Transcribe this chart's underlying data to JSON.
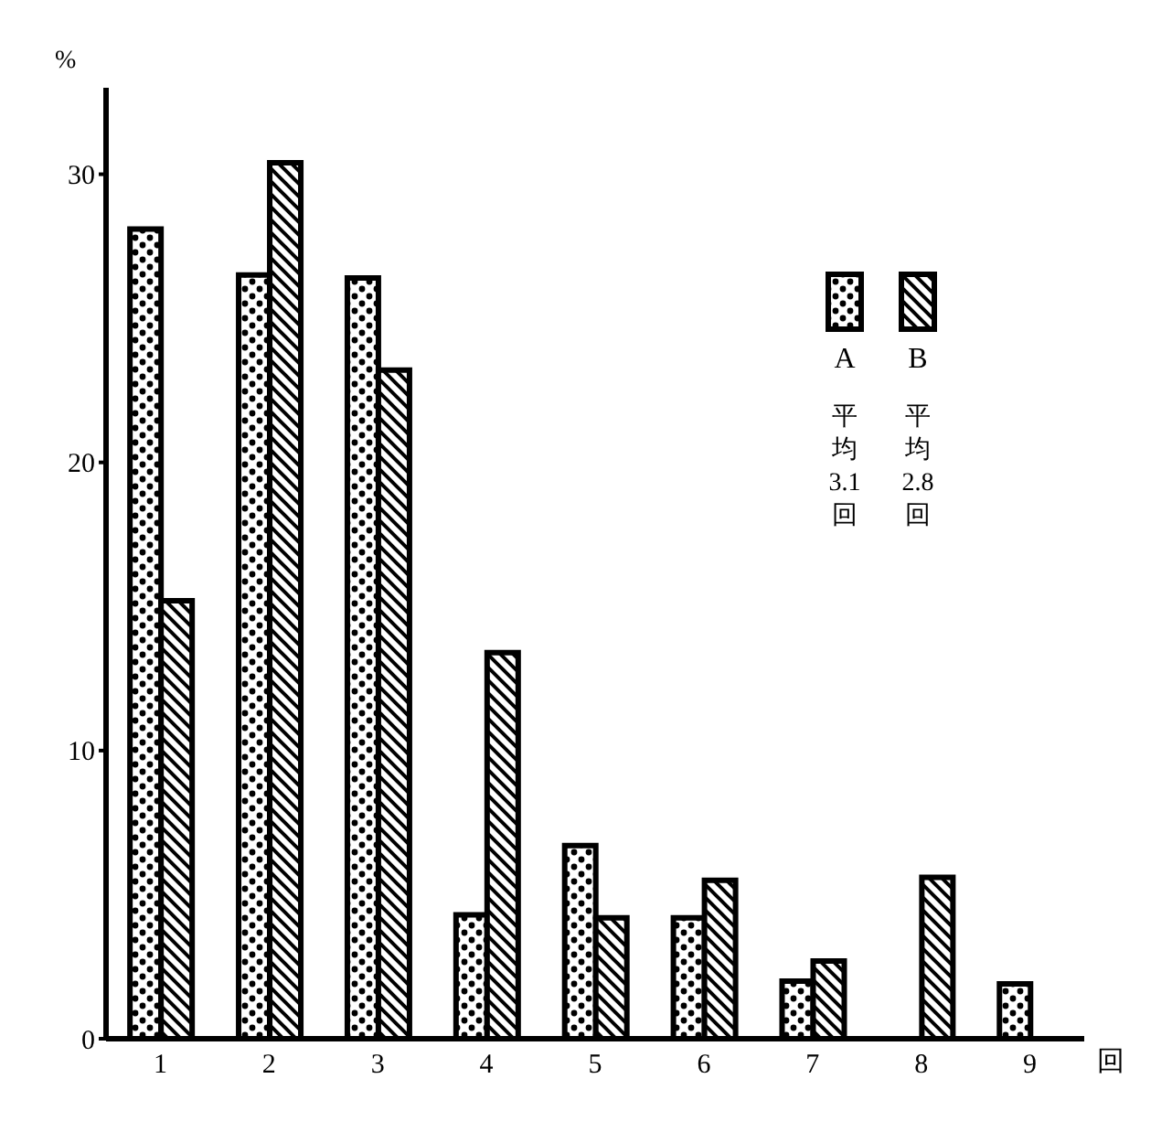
{
  "chart_data": {
    "type": "bar",
    "ylabel": "%",
    "xlabel": "回",
    "categories": [
      "1",
      "2",
      "3",
      "4",
      "5",
      "6",
      "7",
      "8",
      "9"
    ],
    "series": [
      {
        "name": "A",
        "color": "#000000",
        "values": [
          28.1,
          26.5,
          26.4,
          4.3,
          6.7,
          4.2,
          2.0,
          null,
          1.9
        ]
      },
      {
        "name": "B",
        "color": "#000000",
        "values": [
          15.2,
          30.4,
          23.2,
          13.4,
          4.2,
          5.5,
          2.7,
          5.6,
          null
        ]
      }
    ],
    "ylim": [
      0,
      33
    ],
    "yticks": [
      0,
      10,
      20,
      30
    ],
    "grid": false,
    "legend": "top right",
    "annotations": [
      "平均3.1回",
      "平均2.8回"
    ]
  }
}
